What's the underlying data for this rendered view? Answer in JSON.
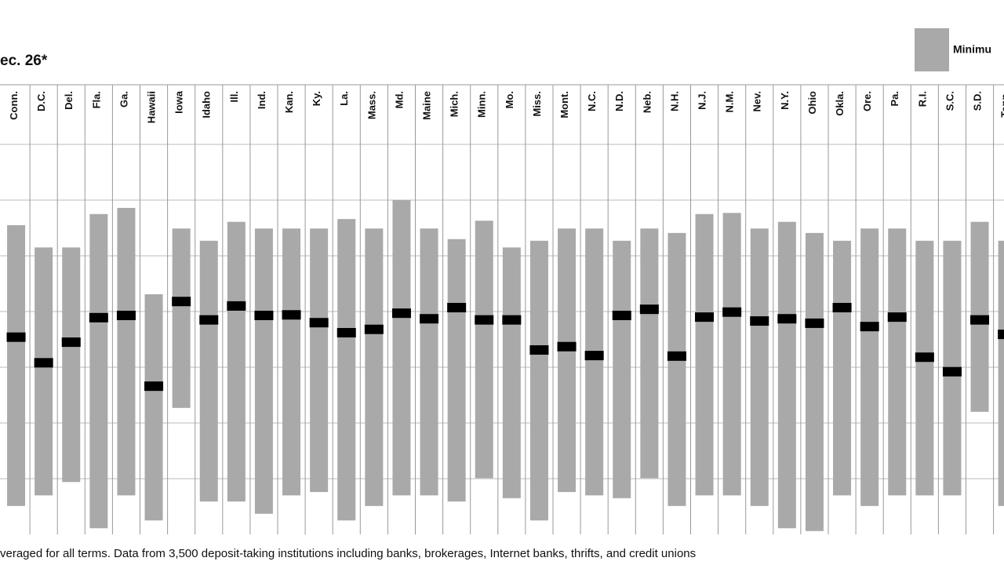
{
  "chart_data": {
    "type": "range",
    "title": "ec. 26*",
    "legend_label": "Minimu",
    "note": "veraged for all terms. Data from 3,500 deposit-taking institutions including banks, brokerages, Internet banks, thrifts, and credit unions",
    "categories": [
      "Conn.",
      "D.C.",
      "Del.",
      "Fla.",
      "Ga.",
      "Hawaii",
      "Iowa",
      "Idaho",
      "Ill.",
      "Ind.",
      "Kan.",
      "Ky.",
      "La.",
      "Mass.",
      "Md.",
      "Maine",
      "Mich.",
      "Minn.",
      "Mo.",
      "Miss.",
      "Mont.",
      "N.C.",
      "N.D.",
      "Neb.",
      "N.H.",
      "N.J.",
      "N.M.",
      "Nev.",
      "N.Y.",
      "Ohio",
      "Okla.",
      "Ore.",
      "Pa.",
      "R.I.",
      "S.C.",
      "S.D.",
      "Tenn."
    ],
    "high": [
      5.55,
      5.15,
      5.15,
      5.75,
      5.86,
      4.31,
      5.49,
      5.27,
      5.61,
      5.49,
      5.49,
      5.49,
      5.66,
      5.49,
      6.0,
      5.49,
      5.3,
      5.63,
      5.15,
      5.27,
      5.49,
      5.49,
      5.27,
      5.49,
      5.41,
      5.75,
      5.77,
      5.49,
      5.61,
      5.41,
      5.27,
      5.49,
      5.49,
      5.27,
      5.27,
      5.61,
      5.27
    ],
    "low": [
      0.51,
      0.7,
      0.94,
      0.11,
      0.7,
      0.25,
      2.27,
      0.59,
      0.59,
      0.37,
      0.7,
      0.76,
      0.25,
      0.51,
      0.7,
      0.7,
      0.59,
      1.01,
      0.65,
      0.25,
      0.76,
      0.7,
      0.65,
      1.01,
      0.51,
      0.7,
      0.7,
      0.51,
      0.11,
      0.06,
      0.7,
      0.51,
      0.7,
      0.7,
      0.7,
      2.2,
      0.51
    ],
    "average": [
      3.54,
      3.08,
      3.45,
      3.89,
      3.93,
      2.66,
      4.18,
      3.85,
      4.1,
      3.93,
      3.94,
      3.8,
      3.62,
      3.68,
      3.97,
      3.87,
      4.07,
      3.85,
      3.85,
      3.31,
      3.37,
      3.21,
      3.93,
      4.04,
      3.2,
      3.9,
      3.99,
      3.83,
      3.87,
      3.79,
      4.07,
      3.73,
      3.9,
      3.18,
      2.92,
      3.85,
      3.59
    ],
    "range_color": "#a9a9a9",
    "average_color": "#000000",
    "ylim": [
      0,
      7
    ],
    "yticks": [
      1,
      2,
      3,
      4,
      5,
      6,
      7
    ],
    "grid": true
  }
}
